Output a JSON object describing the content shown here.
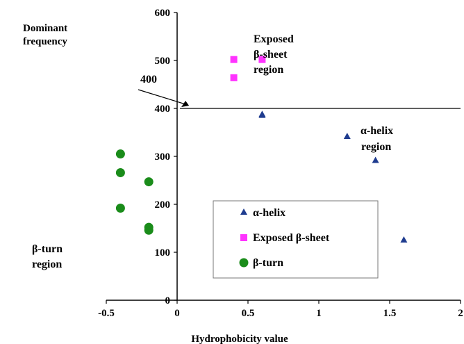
{
  "chart_data": {
    "type": "scatter",
    "title": "",
    "xlabel": "Hydrophobicity value",
    "ylabel_line1": "Dominant",
    "ylabel_line2": "frequency",
    "xlim": [
      -0.5,
      2
    ],
    "ylim": [
      0,
      600
    ],
    "x_ticks": [
      -0.5,
      0,
      0.5,
      1,
      1.5,
      2
    ],
    "x_tick_labels": [
      "-0.5",
      "0",
      "0.5",
      "1",
      "1.5",
      "2"
    ],
    "y_ticks": [
      0,
      100,
      200,
      300,
      400,
      500,
      600
    ],
    "y_tick_labels": [
      "0",
      "100",
      "200",
      "300",
      "400",
      "500",
      "600"
    ],
    "grid": false,
    "legend_position": "bottom-center",
    "series": [
      {
        "name": "α-helix",
        "marker": "triangle",
        "color": "#1f3c8f",
        "points": [
          [
            0.6,
            388
          ],
          [
            0.6,
            386
          ],
          [
            1.2,
            342
          ],
          [
            1.4,
            292
          ],
          [
            1.6,
            126
          ]
        ]
      },
      {
        "name": "Exposed β-sheet",
        "marker": "square",
        "color": "#ff33ff",
        "points": [
          [
            0.4,
            502
          ],
          [
            0.6,
            502
          ],
          [
            0.4,
            464
          ]
        ]
      },
      {
        "name": "β-turn",
        "marker": "circle",
        "color": "#1a8c1a",
        "points": [
          [
            -0.4,
            305
          ],
          [
            -0.4,
            266
          ],
          [
            -0.2,
            247
          ],
          [
            -0.4,
            192
          ],
          [
            -0.2,
            152
          ],
          [
            -0.2,
            146
          ]
        ]
      }
    ],
    "reference_line": {
      "y": 400,
      "x_from": 0.02,
      "x_to": 2
    },
    "annotations": {
      "line_value": "400",
      "sheet_region_line1": "Exposed",
      "sheet_region_line2": "β-sheet",
      "sheet_region_line3": "region",
      "helix_region_line1": "α-helix",
      "helix_region_line2": "region",
      "turn_region_line1": "β-turn",
      "turn_region_line2": "region"
    }
  }
}
